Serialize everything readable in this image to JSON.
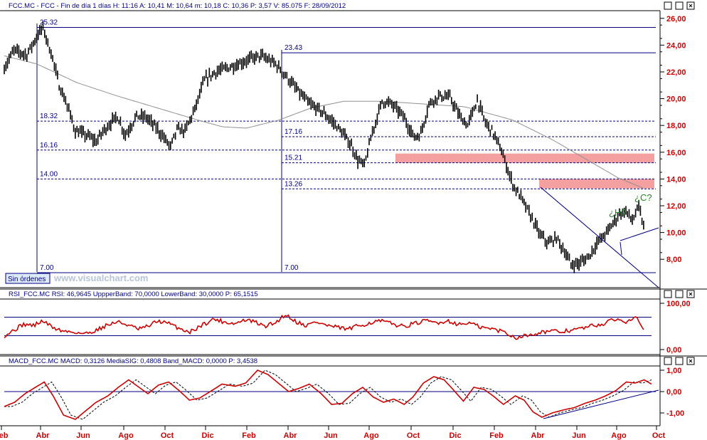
{
  "header": {
    "price": "FCC.MC - FCC - Fin de día 1 días H: 11:16  A: 10,41  M: 10,64  m: 10,18  C: 10,36  P: 3,57  V: 85.075  F: 28/09/2012",
    "rsi": "RSI_FCC.MC  RSI: 46,9645  UppperBand: 70,0000  LowerBand: 30,0000  P: 65,1515",
    "macd": "MACD_FCC.MC  MACD: 0,3126  MediaSIG: 0,4808  Band_MACD: 0,0000  P: 3,4538"
  },
  "badge": {
    "label": "Sin órdenes"
  },
  "watermark": "www.visualchart.com",
  "annotations": {
    "h": "¿H?",
    "c": "¿C?"
  },
  "colors": {
    "navy": "#000080",
    "red": "#cc0000",
    "zone": "#f4a0a0",
    "sma": "#909090"
  },
  "chart_data": [
    {
      "type": "line",
      "name": "price",
      "x_labels": [
        "eb",
        "Abr",
        "Jun",
        "Ago",
        "Oct",
        "Dic",
        "Feb",
        "Abr",
        "Jun",
        "Ago",
        "Oct",
        "Dic",
        "Feb",
        "Abr",
        "Jun",
        "Ago",
        "Oct"
      ],
      "y_ticks": [
        "8,00",
        "10,00",
        "12,00",
        "14,00",
        "16,00",
        "18,00",
        "20,00",
        "22,00",
        "24,00",
        "26,00"
      ],
      "y_tick_values": [
        8,
        10,
        12,
        14,
        16,
        18,
        20,
        22,
        24,
        26
      ],
      "ylim": [
        6.2,
        26.4
      ],
      "n_bars": 420,
      "anchors": [
        [
          0,
          22.3
        ],
        [
          12,
          23.6
        ],
        [
          28,
          23.3
        ],
        [
          42,
          24.8
        ],
        [
          48,
          25.3
        ],
        [
          60,
          23
        ],
        [
          68,
          21
        ],
        [
          78,
          19.5
        ],
        [
          88,
          17.6
        ],
        [
          104,
          17.2
        ],
        [
          114,
          16.8
        ],
        [
          124,
          17.7
        ],
        [
          140,
          18.7
        ],
        [
          150,
          17.3
        ],
        [
          164,
          18.7
        ],
        [
          176,
          18.6
        ],
        [
          190,
          17.7
        ],
        [
          206,
          16.4
        ],
        [
          214,
          17.7
        ],
        [
          224,
          17.6
        ],
        [
          236,
          19.2
        ],
        [
          248,
          21.4
        ],
        [
          262,
          22
        ],
        [
          286,
          22.5
        ],
        [
          306,
          23
        ],
        [
          318,
          23.2
        ],
        [
          336,
          22.6
        ],
        [
          350,
          21.6
        ],
        [
          366,
          20.4
        ],
        [
          378,
          19.6
        ],
        [
          394,
          19
        ],
        [
          408,
          18.2
        ],
        [
          418,
          17.5
        ],
        [
          430,
          16.5
        ],
        [
          438,
          15.4
        ],
        [
          446,
          15
        ],
        [
          456,
          17.5
        ],
        [
          468,
          19.8
        ],
        [
          480,
          19.6
        ],
        [
          494,
          18.7
        ],
        [
          508,
          17.1
        ],
        [
          516,
          17.4
        ],
        [
          526,
          19.6
        ],
        [
          538,
          20.2
        ],
        [
          552,
          20.1
        ],
        [
          564,
          18.7
        ],
        [
          574,
          18
        ],
        [
          586,
          19.9
        ],
        [
          596,
          18.2
        ],
        [
          604,
          17.6
        ],
        [
          614,
          16.4
        ],
        [
          622,
          15
        ],
        [
          630,
          13.6
        ],
        [
          642,
          12.4
        ],
        [
          654,
          11
        ],
        [
          664,
          9.8
        ],
        [
          674,
          9.2
        ],
        [
          684,
          9.6
        ],
        [
          694,
          8.6
        ],
        [
          702,
          7.6
        ],
        [
          712,
          7.7
        ],
        [
          724,
          8.2
        ],
        [
          734,
          9.2
        ],
        [
          742,
          9.7
        ],
        [
          752,
          10.5
        ],
        [
          762,
          11.4
        ],
        [
          770,
          11.6
        ],
        [
          778,
          10.9
        ],
        [
          786,
          11.9
        ],
        [
          792,
          10.4
        ]
      ],
      "sma_anchors": [
        [
          0,
          23.2
        ],
        [
          40,
          22.6
        ],
        [
          90,
          21.2
        ],
        [
          140,
          20.2
        ],
        [
          190,
          19.3
        ],
        [
          240,
          18.4
        ],
        [
          270,
          17.9
        ],
        [
          300,
          17.8
        ],
        [
          340,
          18.4
        ],
        [
          380,
          19.3
        ],
        [
          420,
          19.8
        ],
        [
          470,
          19.8
        ],
        [
          520,
          19.6
        ],
        [
          570,
          19.4
        ],
        [
          630,
          18.4
        ],
        [
          680,
          16.9
        ],
        [
          720,
          15.5
        ],
        [
          760,
          14.1
        ],
        [
          792,
          13.3
        ]
      ],
      "sma_name": "",
      "levels": [
        {
          "label": "25.32",
          "value": 25.32
        },
        {
          "label": "23.43",
          "value": 23.43
        },
        {
          "label": "18.32",
          "value": 18.32
        },
        {
          "label": "17.16",
          "value": 17.16
        },
        {
          "label": "16.16",
          "value": 16.16
        },
        {
          "label": "15.21",
          "value": 15.21
        },
        {
          "label": "14.00",
          "value": 14.0
        },
        {
          "label": "13.26",
          "value": 13.26
        },
        {
          "label": "7.00",
          "value": 7.0
        },
        {
          "label": "7.00",
          "value": 7.0
        }
      ],
      "zones": [
        [
          15.2,
          15.9
        ],
        [
          13.3,
          14.0
        ]
      ],
      "grid": false
    },
    {
      "type": "line",
      "name": "RSI",
      "y_ticks": [
        "100,00",
        "0,00"
      ],
      "ylim": [
        -10,
        118
      ],
      "bands": [
        70,
        30
      ],
      "last": 46.96,
      "anchors": [
        [
          0,
          30
        ],
        [
          10,
          40
        ],
        [
          24,
          55
        ],
        [
          36,
          52
        ],
        [
          48,
          62
        ],
        [
          60,
          48
        ],
        [
          72,
          40
        ],
        [
          86,
          38
        ],
        [
          100,
          34
        ],
        [
          114,
          42
        ],
        [
          126,
          52
        ],
        [
          140,
          60
        ],
        [
          152,
          54
        ],
        [
          166,
          44
        ],
        [
          178,
          50
        ],
        [
          190,
          62
        ],
        [
          204,
          56
        ],
        [
          218,
          45
        ],
        [
          230,
          38
        ],
        [
          246,
          54
        ],
        [
          260,
          66
        ],
        [
          272,
          60
        ],
        [
          286,
          56
        ],
        [
          298,
          64
        ],
        [
          310,
          60
        ],
        [
          322,
          50
        ],
        [
          336,
          58
        ],
        [
          348,
          76
        ],
        [
          362,
          60
        ],
        [
          374,
          52
        ],
        [
          386,
          60
        ],
        [
          400,
          52
        ],
        [
          412,
          48
        ],
        [
          426,
          44
        ],
        [
          440,
          52
        ],
        [
          454,
          58
        ],
        [
          466,
          62
        ],
        [
          480,
          56
        ],
        [
          494,
          50
        ],
        [
          508,
          56
        ],
        [
          522,
          62
        ],
        [
          536,
          58
        ],
        [
          550,
          62
        ],
        [
          564,
          54
        ],
        [
          576,
          58
        ],
        [
          590,
          48
        ],
        [
          606,
          44
        ],
        [
          620,
          38
        ],
        [
          632,
          26
        ],
        [
          646,
          30
        ],
        [
          660,
          36
        ],
        [
          674,
          40
        ],
        [
          688,
          38
        ],
        [
          702,
          42
        ],
        [
          716,
          46
        ],
        [
          730,
          52
        ],
        [
          744,
          56
        ],
        [
          756,
          66
        ],
        [
          770,
          60
        ],
        [
          782,
          74
        ],
        [
          792,
          47
        ]
      ]
    },
    {
      "type": "line",
      "name": "MACD",
      "y_ticks": [
        "1,00",
        "0,00",
        "-1,00"
      ],
      "y_tick_values": [
        1,
        0,
        -1
      ],
      "ylim": [
        -1.6,
        1.4
      ],
      "band": 0,
      "last_macd": 0.3126,
      "last_signal": 0.4808,
      "anchors": [
        [
          0,
          -0.7
        ],
        [
          14,
          -0.5
        ],
        [
          28,
          -0.1
        ],
        [
          42,
          0.2
        ],
        [
          54,
          0.45
        ],
        [
          66,
          -0.2
        ],
        [
          80,
          -1.1
        ],
        [
          96,
          -1.3
        ],
        [
          110,
          -0.9
        ],
        [
          124,
          -0.5
        ],
        [
          140,
          -0.2
        ],
        [
          154,
          0.2
        ],
        [
          168,
          0.55
        ],
        [
          180,
          0.25
        ],
        [
          194,
          -0.1
        ],
        [
          208,
          0.3
        ],
        [
          222,
          0.45
        ],
        [
          236,
          0.05
        ],
        [
          250,
          -0.4
        ],
        [
          264,
          -0.3
        ],
        [
          278,
          0.0
        ],
        [
          294,
          0.35
        ],
        [
          312,
          0.25
        ],
        [
          326,
          0.4
        ],
        [
          342,
          1.0
        ],
        [
          356,
          0.8
        ],
        [
          370,
          0.4
        ],
        [
          384,
          0.0
        ],
        [
          398,
          0.15
        ],
        [
          412,
          0.35
        ],
        [
          428,
          -0.1
        ],
        [
          442,
          -0.6
        ],
        [
          456,
          -0.55
        ],
        [
          470,
          -0.1
        ],
        [
          484,
          0.2
        ],
        [
          498,
          -0.25
        ],
        [
          512,
          -0.5
        ],
        [
          526,
          -0.35
        ],
        [
          540,
          -0.6
        ],
        [
          552,
          -0.25
        ],
        [
          566,
          0.4
        ],
        [
          580,
          0.7
        ],
        [
          594,
          0.55
        ],
        [
          606,
          0.1
        ],
        [
          620,
          -0.45
        ],
        [
          634,
          0.2
        ],
        [
          648,
          0.1
        ],
        [
          660,
          -0.2
        ],
        [
          674,
          -0.6
        ],
        [
          690,
          -0.2
        ],
        [
          702,
          -0.4
        ],
        [
          714,
          -0.95
        ],
        [
          726,
          -1.2
        ],
        [
          740,
          -1.0
        ],
        [
          756,
          -0.85
        ],
        [
          770,
          -0.75
        ],
        [
          784,
          -0.55
        ],
        [
          798,
          -0.4
        ],
        [
          812,
          -0.2
        ],
        [
          826,
          0.05
        ],
        [
          840,
          0.45
        ],
        [
          852,
          0.4
        ],
        [
          864,
          0.55
        ],
        [
          874,
          0.35
        ]
      ]
    }
  ]
}
